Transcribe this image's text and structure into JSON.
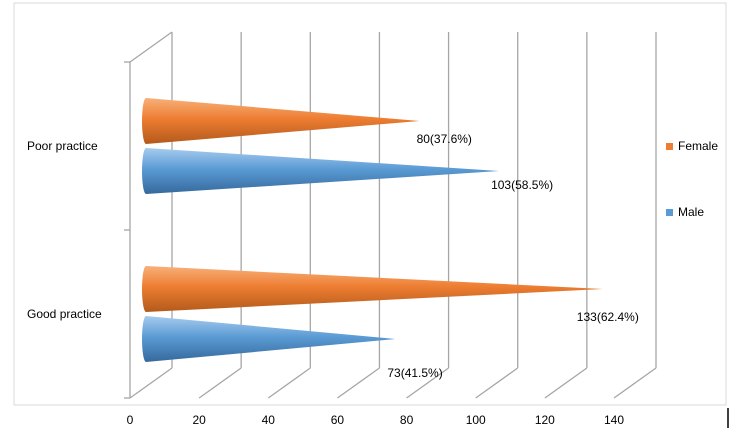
{
  "chart_data": {
    "type": "bar",
    "orientation": "horizontal",
    "style": "3d-cone",
    "categories": [
      "Poor practice",
      "Good practice"
    ],
    "series": [
      {
        "name": "Female",
        "color": "#ED7D31",
        "values": [
          80,
          133
        ],
        "labels": [
          "80(37.6%)",
          "133(62.4%)"
        ]
      },
      {
        "name": "Male",
        "color": "#5B9BD5",
        "values": [
          103,
          73
        ],
        "labels": [
          "103(58.5%)",
          "73(41.5%)"
        ]
      }
    ],
    "x_ticks": [
      "0",
      "20",
      "40",
      "60",
      "80",
      "100",
      "120",
      "140"
    ],
    "xlim": [
      0,
      140
    ],
    "grid": true,
    "legend_position": "right",
    "legend": [
      {
        "name": "Female",
        "color": "#ED7D31"
      },
      {
        "name": "Male",
        "color": "#5B9BD5"
      }
    ]
  }
}
